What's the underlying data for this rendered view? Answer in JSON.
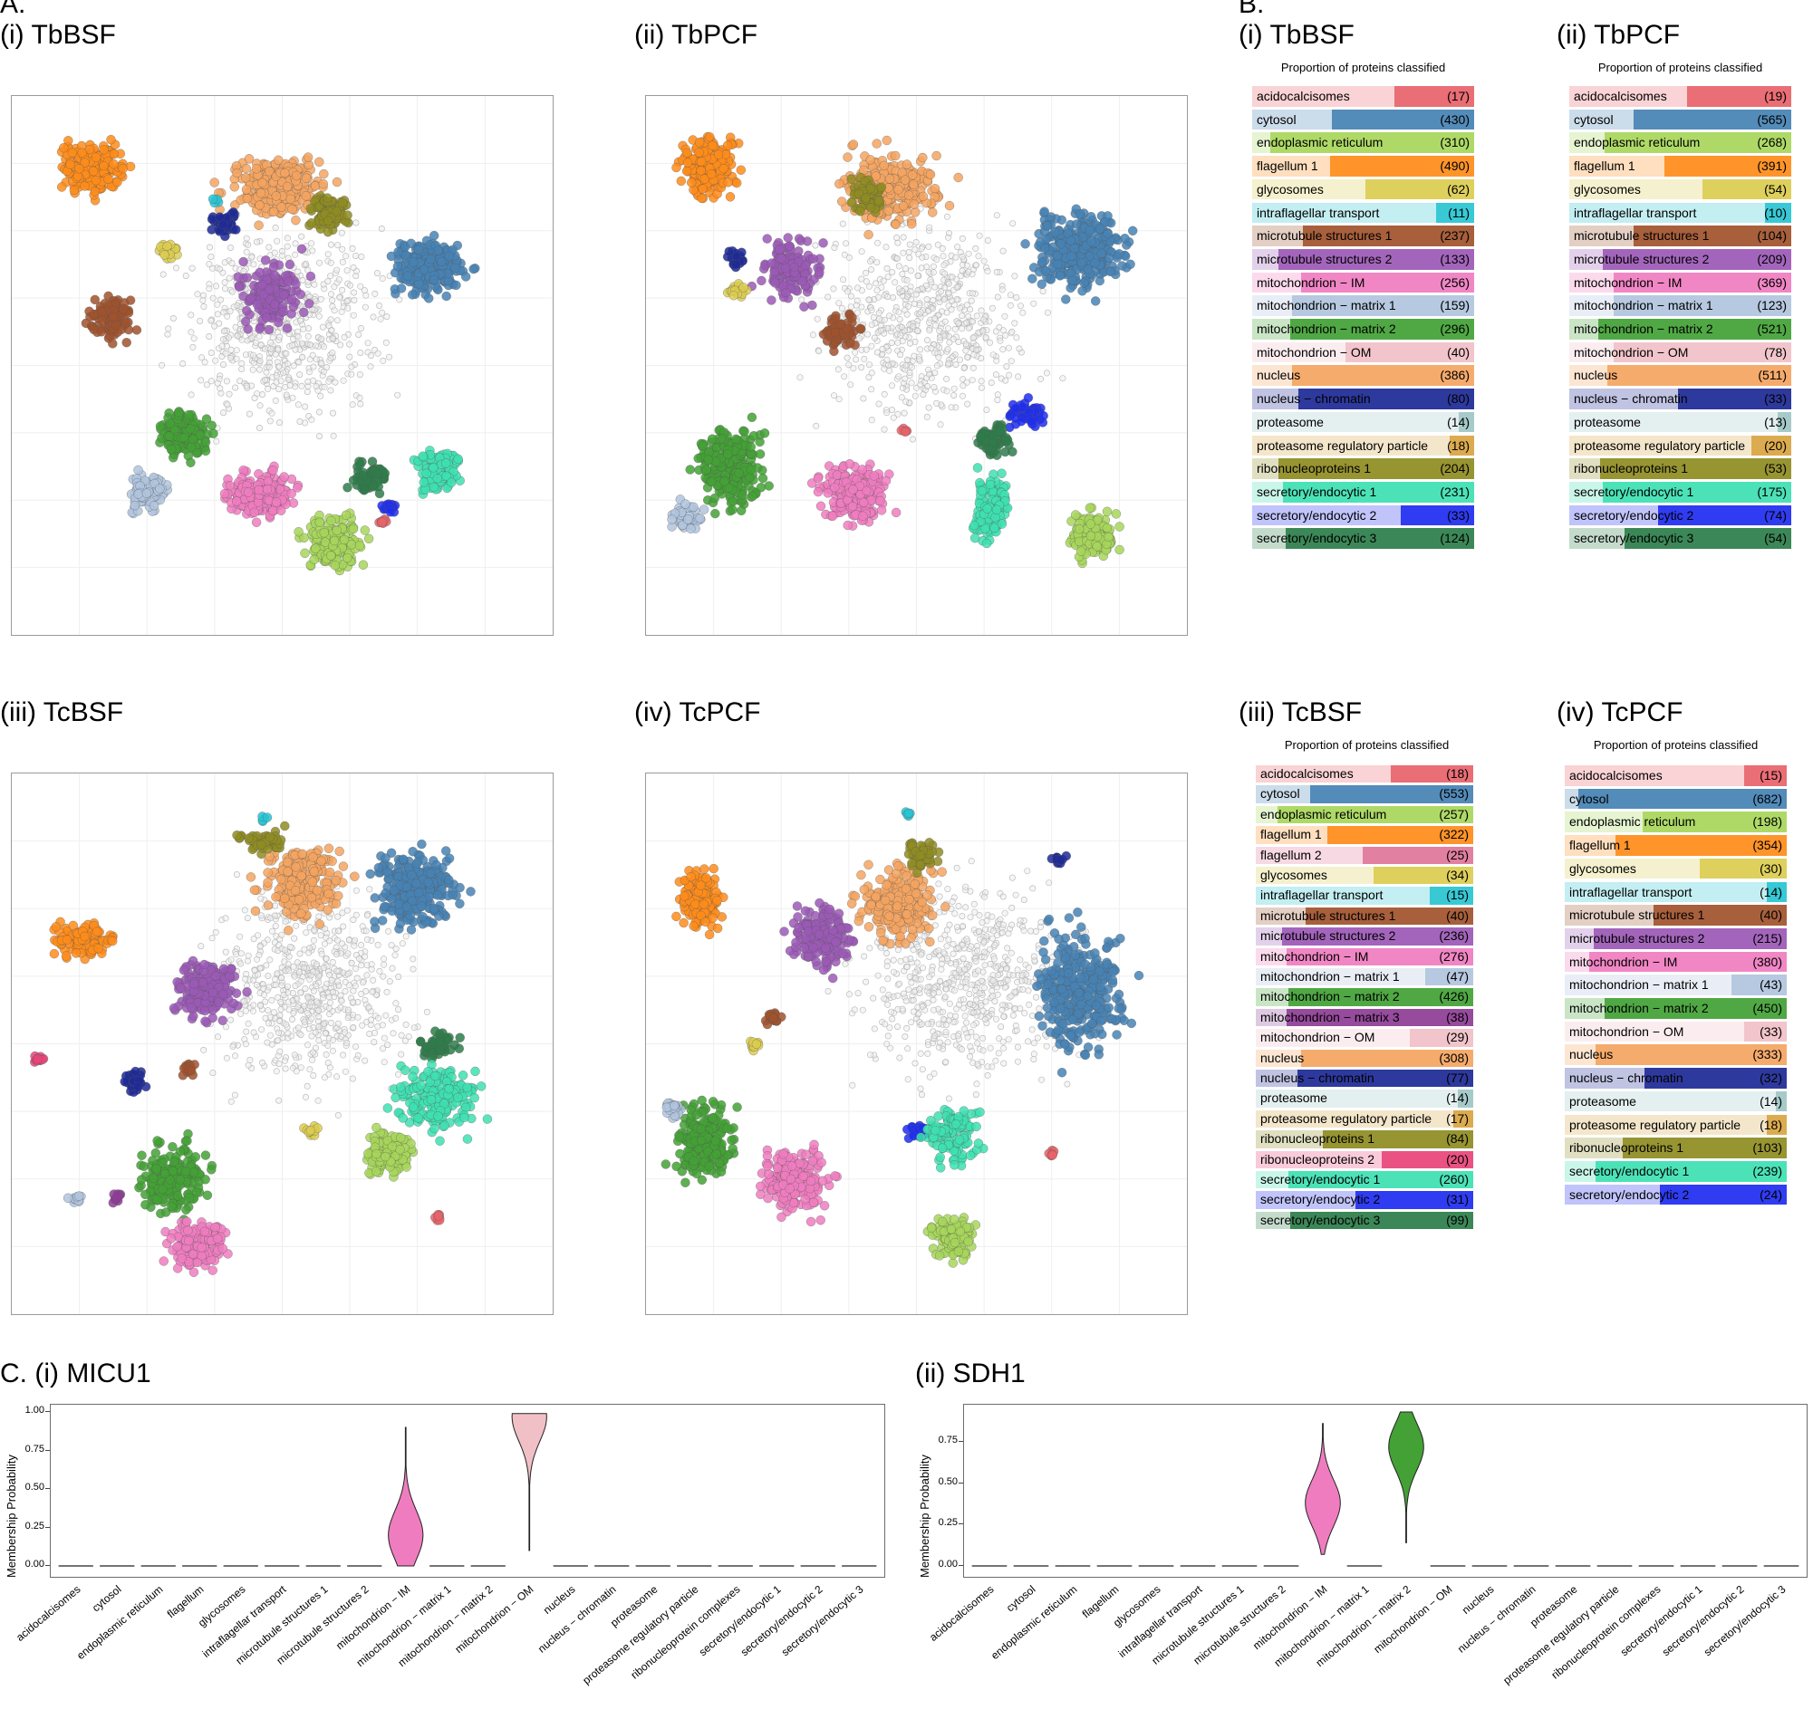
{
  "sections": {
    "a": "A.",
    "b": "B.",
    "c": "C."
  },
  "colors": {
    "acidocalcisomes": "#e8636a",
    "cytosol": "#4682b4",
    "endoplasmic reticulum": "#a7d65b",
    "flagellum 1": "#ff8c1a",
    "flagellum 2": "#e0769a",
    "glycosomes": "#dccc50",
    "intraflagellar transport": "#29c4d2",
    "microtubule structures 1": "#a0522d",
    "microtubule structures 2": "#9b59b6",
    "mitochondrion − IM": "#f07cc0",
    "mitochondrion − matrix 1": "#b0c4de",
    "mitochondrion − matrix 2": "#43a135",
    "mitochondrion − matrix 3": "#8e3d96",
    "mitochondrion − OM": "#f0c0c6",
    "nucleus": "#f4a460",
    "nucleus − chromatin": "#1e2a96",
    "proteasome": "#9fc5c5",
    "proteasome regulatory particle": "#d9a441",
    "ribonucleoproteins 1": "#8f8c22",
    "ribonucleoproteins 2": "#e8457a",
    "secretory/endocytic 1": "#3ee0b2",
    "secretory/endocytic 2": "#1f2ef0",
    "secretory/endocytic 3": "#2e7d4a",
    "unknown": "#d9d9d9"
  },
  "chart_data": [
    {
      "id": "A-i",
      "type": "scatter",
      "title": "(i) TbBSF",
      "description_clusters": [
        "flagellum 1",
        "nucleus",
        "cytosol",
        "ribonucleoproteins 1",
        "nucleus − chromatin",
        "microtubule structures 2",
        "microtubule structures 1",
        "mitochondrion − matrix 2",
        "mitochondrion − matrix 1",
        "mitochondrion − IM",
        "secretory/endocytic 3",
        "secretory/endocytic 1",
        "endoplasmic reticulum",
        "glycosomes",
        "intraflagellar transport",
        "secretory/endocytic 2",
        "acidocalcisomes"
      ]
    },
    {
      "id": "A-ii",
      "type": "scatter",
      "title": "(ii) TbPCF"
    },
    {
      "id": "A-iii",
      "type": "scatter",
      "title": "(iii) TcBSF"
    },
    {
      "id": "A-iv",
      "type": "scatter",
      "title": "(iv) TcPCF"
    },
    {
      "id": "B-i",
      "type": "bar",
      "title": "(i) TbBSF",
      "subtitle": "Proportion of proteins classified",
      "categories": [
        "acidocalcisomes",
        "cytosol",
        "endoplasmic reticulum",
        "flagellum 1",
        "glycosomes",
        "intraflagellar transport",
        "microtubule structures 1",
        "microtubule structures 2",
        "mitochondrion − IM",
        "mitochondrion − matrix 1",
        "mitochondrion − matrix 2",
        "mitochondrion − OM",
        "nucleus",
        "nucleus − chromatin",
        "proteasome",
        "proteasome regulatory particle",
        "ribonucleoproteins 1",
        "secretory/endocytic 1",
        "secretory/endocytic 2",
        "secretory/endocytic 3"
      ],
      "counts": [
        "(17)",
        "(430)",
        "(310)",
        "(490)",
        "(62)",
        "(11)",
        "(237)",
        "(133)",
        "(256)",
        "(159)",
        "(296)",
        "(40)",
        "(386)",
        "(80)",
        "(14)",
        "(18)",
        "(204)",
        "(231)",
        "(33)",
        "(124)"
      ],
      "proportion": [
        0.36,
        0.64,
        0.92,
        0.65,
        0.49,
        0.17,
        0.77,
        0.88,
        0.78,
        0.82,
        0.83,
        0.58,
        0.82,
        0.79,
        0.07,
        0.11,
        0.88,
        0.86,
        0.33,
        0.85
      ]
    },
    {
      "id": "B-ii",
      "type": "bar",
      "title": "(ii) TbPCF",
      "subtitle": "Proportion of proteins classified",
      "categories": [
        "acidocalcisomes",
        "cytosol",
        "endoplasmic reticulum",
        "flagellum 1",
        "glycosomes",
        "intraflagellar transport",
        "microtubule structures 1",
        "microtubule structures 2",
        "mitochondrion − IM",
        "mitochondrion − matrix 1",
        "mitochondrion − matrix 2",
        "mitochondrion − OM",
        "nucleus",
        "nucleus − chromatin",
        "proteasome",
        "proteasome regulatory particle",
        "ribonucleoproteins 1",
        "secretory/endocytic 1",
        "secretory/endocytic 2",
        "secretory/endocytic 3"
      ],
      "counts": [
        "(19)",
        "(565)",
        "(268)",
        "(391)",
        "(54)",
        "(10)",
        "(104)",
        "(209)",
        "(369)",
        "(123)",
        "(521)",
        "(78)",
        "(511)",
        "(33)",
        "(13)",
        "(20)",
        "(53)",
        "(175)",
        "(74)",
        "(54)"
      ],
      "proportion": [
        0.47,
        0.71,
        0.84,
        0.57,
        0.4,
        0.12,
        0.71,
        0.85,
        0.8,
        0.8,
        0.87,
        0.8,
        0.83,
        0.51,
        0.06,
        0.18,
        0.86,
        0.85,
        0.6,
        0.75
      ]
    },
    {
      "id": "B-iii",
      "type": "bar",
      "title": "(iii) TcBSF",
      "subtitle": "Proportion of proteins classified",
      "categories": [
        "acidocalcisomes",
        "cytosol",
        "endoplasmic reticulum",
        "flagellum 1",
        "flagellum 2",
        "glycosomes",
        "intraflagellar transport",
        "microtubule structures 1",
        "microtubule structures 2",
        "mitochondrion − IM",
        "mitochondrion − matrix 1",
        "mitochondrion − matrix 2",
        "mitochondrion − matrix 3",
        "mitochondrion − OM",
        "nucleus",
        "nucleus − chromatin",
        "proteasome",
        "proteasome regulatory particle",
        "ribonucleoproteins 1",
        "ribonucleoproteins 2",
        "secretory/endocytic 1",
        "secretory/endocytic 2",
        "secretory/endocytic 3"
      ],
      "counts": [
        "(18)",
        "(553)",
        "(257)",
        "(322)",
        "(25)",
        "(34)",
        "(15)",
        "(40)",
        "(236)",
        "(276)",
        "(47)",
        "(426)",
        "(38)",
        "(29)",
        "(308)",
        "(77)",
        "(14)",
        "(17)",
        "(84)",
        "(20)",
        "(260)",
        "(31)",
        "(99)"
      ],
      "proportion": [
        0.38,
        0.75,
        0.9,
        0.67,
        0.51,
        0.46,
        0.2,
        0.77,
        0.88,
        0.86,
        0.22,
        0.85,
        0.86,
        0.29,
        0.79,
        0.81,
        0.07,
        0.09,
        0.69,
        0.42,
        0.85,
        0.54,
        0.84
      ]
    },
    {
      "id": "B-iv",
      "type": "bar",
      "title": "(iv) TcPCF",
      "subtitle": "Proportion of proteins classified",
      "categories": [
        "acidocalcisomes",
        "cytosol",
        "endoplasmic reticulum",
        "flagellum 1",
        "glycosomes",
        "intraflagellar transport",
        "microtubule structures 1",
        "microtubule structures 2",
        "mitochondrion − IM",
        "mitochondrion − matrix 1",
        "mitochondrion − matrix 2",
        "mitochondrion − OM",
        "nucleus",
        "nucleus − chromatin",
        "proteasome",
        "proteasome regulatory particle",
        "ribonucleoproteins 1",
        "secretory/endocytic 1",
        "secretory/endocytic 2"
      ],
      "counts": [
        "(15)",
        "(682)",
        "(198)",
        "(354)",
        "(30)",
        "(14)",
        "(40)",
        "(215)",
        "(380)",
        "(43)",
        "(450)",
        "(33)",
        "(333)",
        "(32)",
        "(14)",
        "(18)",
        "(103)",
        "(239)",
        "(24)"
      ],
      "proportion": [
        0.19,
        0.94,
        0.65,
        0.77,
        0.39,
        0.09,
        0.6,
        0.87,
        0.89,
        0.25,
        0.82,
        0.19,
        0.86,
        0.64,
        0.05,
        0.09,
        0.74,
        0.86,
        0.57
      ]
    },
    {
      "id": "C-i",
      "type": "violin",
      "title": "C. (i) MICU1",
      "ylabel": "Membership Probability",
      "yticks": [
        "0.00",
        "0.25",
        "0.50",
        "0.75",
        "1.00"
      ],
      "ylim": [
        0,
        1.0
      ],
      "categories": [
        "acidocalcisomes",
        "cytosol",
        "endoplasmic reticulum",
        "flagellum",
        "glycosomes",
        "intraflagellar transport",
        "microtubule structures 1",
        "microtubule structures 2",
        "mitochondrion − IM",
        "mitochondrion − matrix 1",
        "mitochondrion − matrix 2",
        "mitochondrion − OM",
        "nucleus",
        "nucleus − chromatin",
        "proteasome",
        "proteasome regulatory particle",
        "ribonucleoprotein complexes",
        "secretory/endocytic 1",
        "secretory/endocytic 2",
        "secretory/endocytic 3"
      ],
      "violins": [
        {
          "category": "mitochondrion − IM",
          "min": 0.0,
          "max": 0.9,
          "mode": 0.2,
          "color": "#f07cc0"
        },
        {
          "category": "mitochondrion − OM",
          "min": 0.1,
          "max": 0.99,
          "mode": 0.97,
          "color": "#f0c0c6"
        }
      ]
    },
    {
      "id": "C-ii",
      "type": "violin",
      "title": "(ii) SDH1",
      "ylabel": "Membership Probability",
      "yticks": [
        "0.00",
        "0.25",
        "0.50",
        "0.75"
      ],
      "ylim": [
        0,
        0.93
      ],
      "categories": [
        "acidocalcisomes",
        "cytosol",
        "endoplasmic reticulum",
        "flagellum",
        "glycosomes",
        "intraflagellar transport",
        "microtubule structures 1",
        "microtubule structures 2",
        "mitochondrion − IM",
        "mitochondrion − matrix 1",
        "mitochondrion − matrix 2",
        "mitochondrion − OM",
        "nucleus",
        "nucleus − chromatin",
        "proteasome",
        "proteasome regulatory particle",
        "ribonucleoprotein complexes",
        "secretory/endocytic 1",
        "secretory/endocytic 2",
        "secretory/endocytic 3"
      ],
      "violins": [
        {
          "category": "mitochondrion − IM",
          "min": 0.07,
          "max": 0.86,
          "mode": 0.38,
          "color": "#f07cc0"
        },
        {
          "category": "mitochondrion − matrix 2",
          "min": 0.14,
          "max": 0.93,
          "mode": 0.72,
          "color": "#43a135"
        }
      ]
    }
  ]
}
